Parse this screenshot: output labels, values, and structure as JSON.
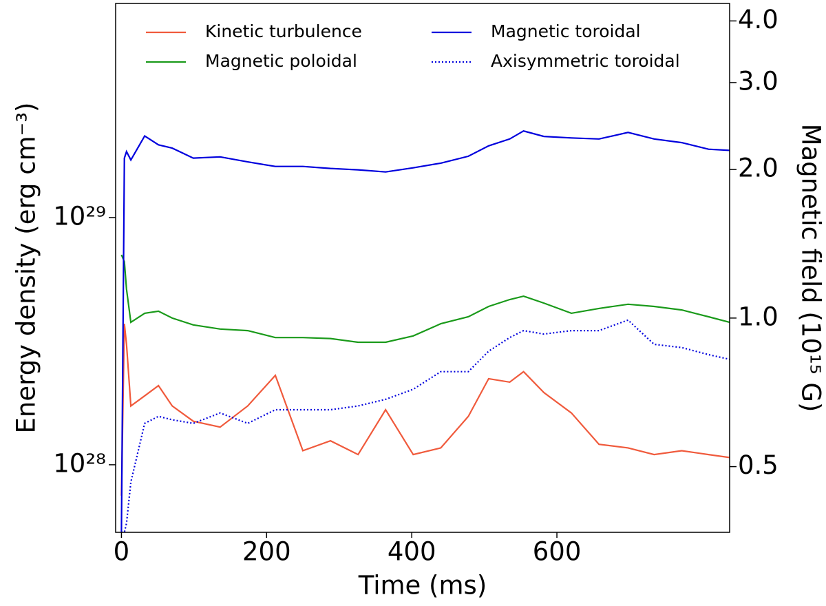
{
  "chart_data": {
    "type": "line",
    "xlabel": "Time (ms)",
    "ylabel": "Energy density (erg cm⁻³)",
    "y2label": "Magnetic field (10¹⁵ G)",
    "x": [
      0,
      4,
      7,
      13,
      32,
      51,
      70,
      99,
      136,
      174,
      212,
      250,
      288,
      326,
      364,
      402,
      440,
      478,
      506,
      535,
      554,
      582,
      620,
      658,
      698,
      734,
      772,
      809,
      838
    ],
    "series": [
      {
        "name": "Kinetic turbulence",
        "color": "#f05a3c",
        "linestyle": "solid",
        "values": [
          7.5e+27,
          3.72e+28,
          3.07e+28,
          1.73e+28,
          1.9e+28,
          2.09e+28,
          1.73e+28,
          1.5e+28,
          1.42e+28,
          1.73e+28,
          2.3e+28,
          1.14e+28,
          1.25e+28,
          1.1e+28,
          1.67e+28,
          1.1e+28,
          1.17e+28,
          1.57e+28,
          2.23e+28,
          2.16e+28,
          2.38e+28,
          1.96e+28,
          1.62e+28,
          1.21e+28,
          1.17e+28,
          1.1e+28,
          1.14e+28,
          1.1e+28,
          1.07e+28
        ]
      },
      {
        "name": "Magnetic poloidal",
        "color": "#1a9a1a",
        "linestyle": "solid",
        "values": [
          7.07e+28,
          6.63e+28,
          5.13e+28,
          3.77e+28,
          4.1e+28,
          4.18e+28,
          3.92e+28,
          3.68e+28,
          3.54e+28,
          3.49e+28,
          3.27e+28,
          3.27e+28,
          3.24e+28,
          3.13e+28,
          3.13e+28,
          3.32e+28,
          3.72e+28,
          3.97e+28,
          4.37e+28,
          4.66e+28,
          4.81e+28,
          4.51e+28,
          4.1e+28,
          4.29e+28,
          4.46e+28,
          4.37e+28,
          4.23e+28,
          3.97e+28,
          3.77e+28
        ]
      },
      {
        "name": "Magnetic toroidal",
        "color": "#0000dd",
        "linestyle": "solid",
        "values": [
          5.33e+27,
          1.74e+29,
          1.85e+29,
          1.71e+29,
          2.14e+29,
          1.97e+29,
          1.91e+29,
          1.74e+29,
          1.76e+29,
          1.68e+29,
          1.61e+29,
          1.61e+29,
          1.58e+29,
          1.56e+29,
          1.53e+29,
          1.59e+29,
          1.66e+29,
          1.77e+29,
          1.95e+29,
          2.08e+29,
          2.24e+29,
          2.13e+29,
          2.1e+29,
          2.08e+29,
          2.21e+29,
          2.08e+29,
          2.01e+29,
          1.89e+29,
          1.87e+29
        ]
      },
      {
        "name": "Axisymmetric toroidal",
        "color": "#0000dd",
        "linestyle": "dotted",
        "values": [
          5.33e+27,
          5.33e+27,
          5.8e+27,
          8.51e+27,
          1.47e+28,
          1.57e+28,
          1.52e+28,
          1.47e+28,
          1.62e+28,
          1.47e+28,
          1.67e+28,
          1.67e+28,
          1.67e+28,
          1.73e+28,
          1.84e+28,
          2.02e+28,
          2.38e+28,
          2.38e+28,
          2.88e+28,
          3.27e+28,
          3.49e+28,
          3.38e+28,
          3.49e+28,
          3.49e+28,
          3.85e+28,
          3.07e+28,
          2.98e+28,
          2.79e+28,
          2.67e+28
        ]
      }
    ],
    "xlim": [
      -8,
      838
    ],
    "xticks": [
      0,
      200,
      400,
      600
    ],
    "ylim": [
      5.33e+27,
      7.35e+29
    ],
    "ylog": true,
    "yticks": [
      {
        "value": 1e+28,
        "label": "10²⁸"
      },
      {
        "value": 1e+29,
        "label": "10²⁹"
      }
    ],
    "y2lim": [
      0.368,
      4.34
    ],
    "y2log": true,
    "y2ticks": [
      0.5,
      {
        "value": 1,
        "label": "1.0"
      },
      {
        "value": 2,
        "label": "2.0"
      },
      {
        "value": 3,
        "label": "3.0"
      },
      {
        "value": 4,
        "label": "4.0"
      }
    ],
    "legend": "upper center",
    "legend_columns": 2
  }
}
